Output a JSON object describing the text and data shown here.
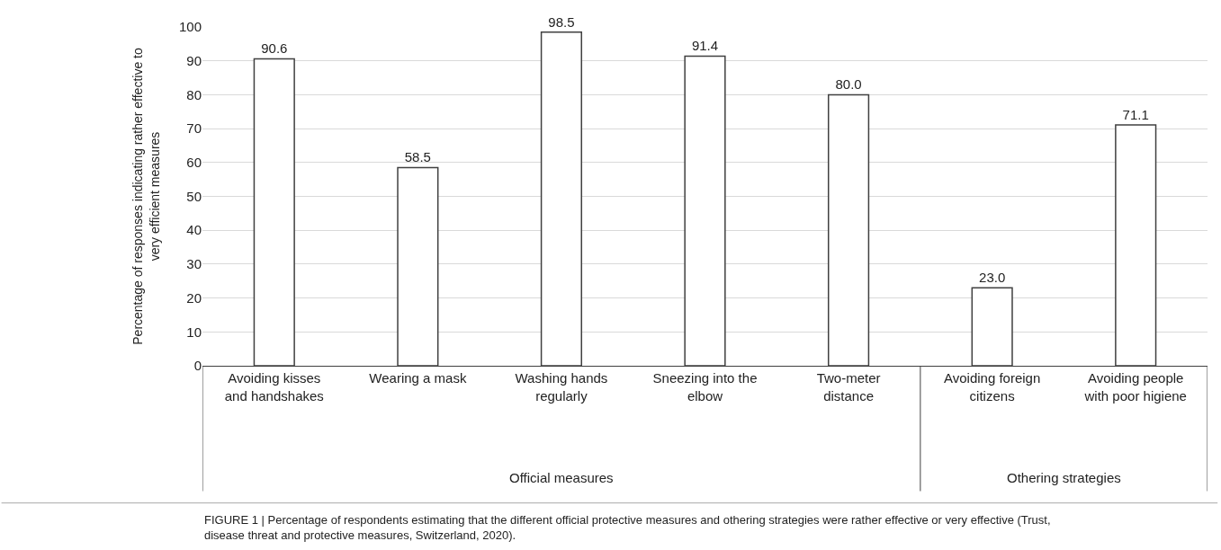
{
  "chart_data": {
    "type": "bar",
    "categories": [
      "Avoiding kisses and handshakes",
      "Wearing a mask",
      "Washing hands regularly",
      "Sneezing into the elbow",
      "Two-meter distance",
      "Avoiding foreign citizens",
      "Avoiding people with poor higiene"
    ],
    "values": [
      90.6,
      58.5,
      98.5,
      91.4,
      80.0,
      23.0,
      71.1
    ],
    "value_labels": [
      "90.6",
      "58.5",
      "98.5",
      "91.4",
      "80.0",
      "23.0",
      "71.1"
    ],
    "color": "#ffffff",
    "ylabel": "Percentage of responses indicating rather effective to very efficient measures",
    "ylim": [
      0,
      100
    ],
    "yticks": [
      0,
      10,
      20,
      30,
      40,
      50,
      60,
      70,
      80,
      90,
      100
    ],
    "grid": "y",
    "annotations": [
      "Official measures",
      "Othering strategies",
      "FIGURE 1 | Percentage of respondents estimating that the different official protective measures and othering strategies were rather effective or very effective (Trust, disease threat and protective measures, Switzerland, 2020)."
    ]
  }
}
